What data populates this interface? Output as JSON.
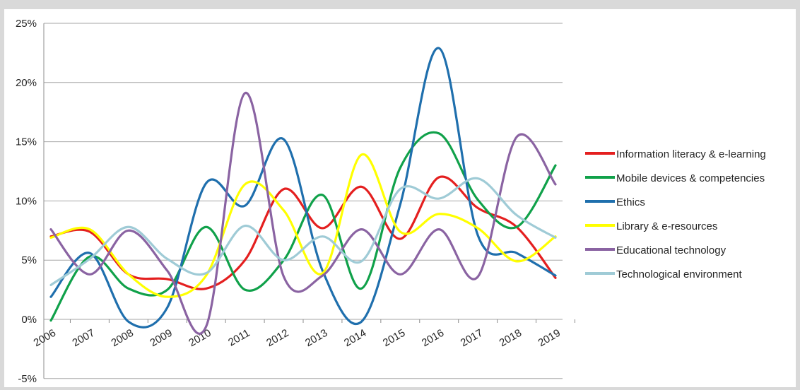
{
  "chart_data": {
    "type": "line",
    "categories": [
      "2006",
      "2007",
      "2008",
      "2009",
      "2010",
      "2011",
      "2012",
      "2013",
      "2014",
      "2015",
      "2016",
      "2017",
      "2018",
      "2019"
    ],
    "ylim": [
      -5,
      25
    ],
    "yticks": [
      -5,
      0,
      5,
      10,
      15,
      20,
      25
    ],
    "ytick_labels": [
      "-5%",
      "0%",
      "5%",
      "10%",
      "15%",
      "20%",
      "25%"
    ],
    "grid": true,
    "legend_position": "right",
    "series": [
      {
        "name": "Information literacy & e-learning",
        "color": "#e41f1f",
        "values": [
          7.0,
          7.4,
          3.8,
          3.4,
          2.6,
          5.0,
          11.0,
          7.7,
          11.2,
          6.8,
          12.0,
          9.4,
          7.8,
          3.5
        ]
      },
      {
        "name": "Mobile devices & competencies",
        "color": "#10a14a",
        "values": [
          -0.1,
          5.3,
          2.6,
          2.5,
          7.8,
          2.5,
          5.0,
          10.5,
          2.6,
          12.8,
          15.7,
          10.1,
          7.8,
          13.0
        ]
      },
      {
        "name": "Ethics",
        "color": "#1f6fad",
        "values": [
          1.9,
          5.6,
          -0.2,
          1.0,
          11.5,
          9.6,
          15.2,
          4.1,
          -0.2,
          9.7,
          22.9,
          7.1,
          5.6,
          3.7
        ]
      },
      {
        "name": "Library & e-resources",
        "color": "#ffff00",
        "values": [
          6.9,
          7.6,
          3.8,
          1.9,
          3.7,
          11.4,
          9.2,
          3.9,
          13.9,
          7.4,
          8.9,
          7.7,
          4.9,
          7.0
        ]
      },
      {
        "name": "Educational technology",
        "color": "#8a63a2",
        "values": [
          7.6,
          3.8,
          7.5,
          4.1,
          -0.6,
          19.1,
          3.6,
          3.7,
          7.6,
          3.8,
          7.6,
          3.6,
          15.4,
          11.4
        ]
      },
      {
        "name": "Technological environment",
        "color": "#9fcbd6",
        "values": [
          2.9,
          5.1,
          7.8,
          5.1,
          3.9,
          7.9,
          5.0,
          7.0,
          4.9,
          11.0,
          10.2,
          11.9,
          8.8,
          6.9
        ]
      }
    ]
  }
}
